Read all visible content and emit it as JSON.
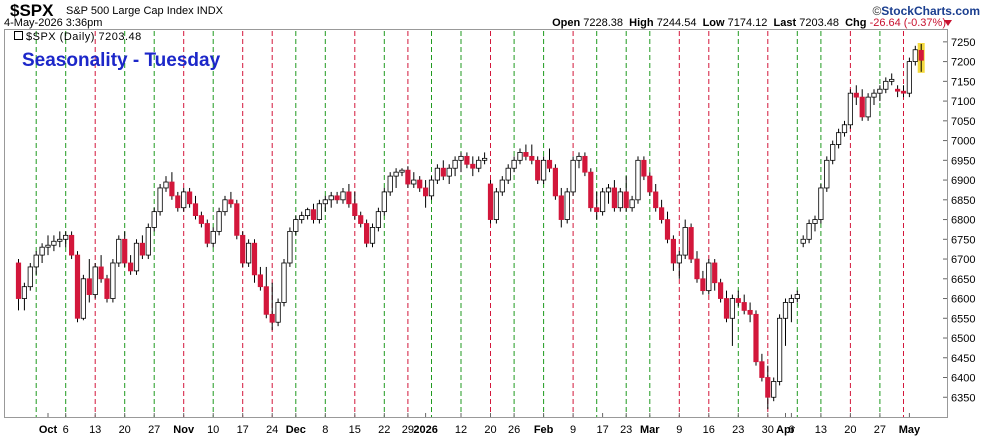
{
  "header": {
    "symbol": "$SPX",
    "name": "S&P 500 Large Cap Index",
    "exchange": "INDX",
    "datetime": "4-May-2026 3:36pm",
    "brand": "StockCharts.com",
    "brand_prefix": "©",
    "open_label": "Open",
    "open": "7228.38",
    "high_label": "High",
    "high": "7244.54",
    "low_label": "Low",
    "low": "7174.12",
    "last_label": "Last",
    "last": "7203.48",
    "chg_label": "Chg",
    "chg": "-26.64 (-0.37%)"
  },
  "legend": {
    "label": "$SPX (Daily) 7203.48"
  },
  "title": "Seasonality - Tuesday",
  "colors": {
    "up": "#ffffff",
    "down": "#d3173b",
    "green_line": "#1f9a1f",
    "red_line": "#d3173b",
    "title": "#1c27c9",
    "highlight": "#f2d21b"
  },
  "chart_data": {
    "type": "candlestick",
    "title": "Seasonality - Tuesday",
    "y_axis": {
      "position": "right",
      "ylim": [
        6300,
        7280
      ],
      "ticks": [
        6350,
        6400,
        6450,
        6500,
        6550,
        6600,
        6650,
        6700,
        6750,
        6800,
        6850,
        6900,
        6950,
        7000,
        7050,
        7100,
        7150,
        7200,
        7250
      ]
    },
    "x_tick_labels": [
      {
        "label": "Oct",
        "i": 5,
        "bold": true
      },
      {
        "label": "6",
        "i": 8
      },
      {
        "label": "13",
        "i": 13
      },
      {
        "label": "20",
        "i": 18
      },
      {
        "label": "27",
        "i": 23
      },
      {
        "label": "Nov",
        "i": 28,
        "bold": true
      },
      {
        "label": "10",
        "i": 33
      },
      {
        "label": "17",
        "i": 38
      },
      {
        "label": "24",
        "i": 43
      },
      {
        "label": "Dec",
        "i": 47,
        "bold": true
      },
      {
        "label": "8",
        "i": 52
      },
      {
        "label": "15",
        "i": 57
      },
      {
        "label": "22",
        "i": 62
      },
      {
        "label": "29",
        "i": 66
      },
      {
        "label": "2026",
        "i": 69,
        "bold": true
      },
      {
        "label": "12",
        "i": 75
      },
      {
        "label": "20",
        "i": 80
      },
      {
        "label": "26",
        "i": 84
      },
      {
        "label": "Feb",
        "i": 89,
        "bold": true
      },
      {
        "label": "9",
        "i": 94
      },
      {
        "label": "17",
        "i": 99
      },
      {
        "label": "23",
        "i": 103
      },
      {
        "label": "Mar",
        "i": 107,
        "bold": true
      },
      {
        "label": "9",
        "i": 112
      },
      {
        "label": "16",
        "i": 117
      },
      {
        "label": "23",
        "i": 122
      },
      {
        "label": "30",
        "i": 127
      },
      {
        "label": "Apr",
        "i": 130,
        "bold": true
      },
      {
        "label": "6",
        "i": 131
      },
      {
        "label": "13",
        "i": 136
      },
      {
        "label": "20",
        "i": 141
      },
      {
        "label": "27",
        "i": 146
      },
      {
        "label": "May",
        "i": 151,
        "bold": true
      }
    ],
    "seasonality_lines": [
      {
        "i": 3,
        "c": "green"
      },
      {
        "i": 8,
        "c": "green"
      },
      {
        "i": 13,
        "c": "red"
      },
      {
        "i": 18,
        "c": "green"
      },
      {
        "i": 23,
        "c": "green"
      },
      {
        "i": 28,
        "c": "red"
      },
      {
        "i": 33,
        "c": "green"
      },
      {
        "i": 38,
        "c": "red"
      },
      {
        "i": 43,
        "c": "red"
      },
      {
        "i": 47,
        "c": "green"
      },
      {
        "i": 52,
        "c": "green"
      },
      {
        "i": 57,
        "c": "red"
      },
      {
        "i": 62,
        "c": "green"
      },
      {
        "i": 66,
        "c": "red"
      },
      {
        "i": 70,
        "c": "green"
      },
      {
        "i": 75,
        "c": "green"
      },
      {
        "i": 80,
        "c": "red"
      },
      {
        "i": 84,
        "c": "green"
      },
      {
        "i": 89,
        "c": "green"
      },
      {
        "i": 94,
        "c": "red"
      },
      {
        "i": 98,
        "c": "green"
      },
      {
        "i": 103,
        "c": "green"
      },
      {
        "i": 107,
        "c": "green"
      },
      {
        "i": 112,
        "c": "red"
      },
      {
        "i": 117,
        "c": "red"
      },
      {
        "i": 122,
        "c": "green"
      },
      {
        "i": 127,
        "c": "red"
      },
      {
        "i": 132,
        "c": "green"
      },
      {
        "i": 136,
        "c": "green"
      },
      {
        "i": 141,
        "c": "red"
      },
      {
        "i": 146,
        "c": "green"
      },
      {
        "i": 150,
        "c": "red"
      }
    ],
    "candles": [
      {
        "o": 6690,
        "h": 6700,
        "l": 6570,
        "c": 6600
      },
      {
        "o": 6600,
        "h": 6640,
        "l": 6570,
        "c": 6630
      },
      {
        "o": 6630,
        "h": 6690,
        "l": 6620,
        "c": 6680
      },
      {
        "o": 6680,
        "h": 6720,
        "l": 6660,
        "c": 6710
      },
      {
        "o": 6710,
        "h": 6740,
        "l": 6690,
        "c": 6730
      },
      {
        "o": 6730,
        "h": 6760,
        "l": 6710,
        "c": 6735
      },
      {
        "o": 6735,
        "h": 6760,
        "l": 6720,
        "c": 6745
      },
      {
        "o": 6745,
        "h": 6770,
        "l": 6730,
        "c": 6750
      },
      {
        "o": 6750,
        "h": 6770,
        "l": 6730,
        "c": 6760
      },
      {
        "o": 6760,
        "h": 6770,
        "l": 6700,
        "c": 6710
      },
      {
        "o": 6710,
        "h": 6720,
        "l": 6540,
        "c": 6550
      },
      {
        "o": 6550,
        "h": 6660,
        "l": 6545,
        "c": 6650
      },
      {
        "o": 6650,
        "h": 6700,
        "l": 6590,
        "c": 6610
      },
      {
        "o": 6610,
        "h": 6690,
        "l": 6600,
        "c": 6680
      },
      {
        "o": 6680,
        "h": 6710,
        "l": 6640,
        "c": 6650
      },
      {
        "o": 6650,
        "h": 6660,
        "l": 6590,
        "c": 6600
      },
      {
        "o": 6600,
        "h": 6700,
        "l": 6590,
        "c": 6690
      },
      {
        "o": 6690,
        "h": 6760,
        "l": 6680,
        "c": 6750
      },
      {
        "o": 6750,
        "h": 6770,
        "l": 6680,
        "c": 6690
      },
      {
        "o": 6690,
        "h": 6710,
        "l": 6660,
        "c": 6670
      },
      {
        "o": 6670,
        "h": 6750,
        "l": 6660,
        "c": 6740
      },
      {
        "o": 6740,
        "h": 6760,
        "l": 6700,
        "c": 6710
      },
      {
        "o": 6710,
        "h": 6790,
        "l": 6700,
        "c": 6780
      },
      {
        "o": 6780,
        "h": 6830,
        "l": 6770,
        "c": 6820
      },
      {
        "o": 6820,
        "h": 6890,
        "l": 6810,
        "c": 6880
      },
      {
        "o": 6880,
        "h": 6910,
        "l": 6870,
        "c": 6895
      },
      {
        "o": 6895,
        "h": 6920,
        "l": 6850,
        "c": 6860
      },
      {
        "o": 6860,
        "h": 6870,
        "l": 6820,
        "c": 6830
      },
      {
        "o": 6830,
        "h": 6880,
        "l": 6820,
        "c": 6870
      },
      {
        "o": 6870,
        "h": 6880,
        "l": 6830,
        "c": 6840
      },
      {
        "o": 6840,
        "h": 6860,
        "l": 6800,
        "c": 6810
      },
      {
        "o": 6810,
        "h": 6820,
        "l": 6780,
        "c": 6790
      },
      {
        "o": 6790,
        "h": 6800,
        "l": 6730,
        "c": 6740
      },
      {
        "o": 6740,
        "h": 6780,
        "l": 6730,
        "c": 6770
      },
      {
        "o": 6770,
        "h": 6830,
        "l": 6760,
        "c": 6820
      },
      {
        "o": 6820,
        "h": 6860,
        "l": 6810,
        "c": 6850
      },
      {
        "o": 6850,
        "h": 6870,
        "l": 6830,
        "c": 6840
      },
      {
        "o": 6840,
        "h": 6850,
        "l": 6750,
        "c": 6760
      },
      {
        "o": 6760,
        "h": 6770,
        "l": 6680,
        "c": 6690
      },
      {
        "o": 6690,
        "h": 6750,
        "l": 6680,
        "c": 6740
      },
      {
        "o": 6740,
        "h": 6750,
        "l": 6640,
        "c": 6660
      },
      {
        "o": 6660,
        "h": 6680,
        "l": 6620,
        "c": 6630
      },
      {
        "o": 6630,
        "h": 6680,
        "l": 6550,
        "c": 6560
      },
      {
        "o": 6560,
        "h": 6640,
        "l": 6520,
        "c": 6540
      },
      {
        "o": 6540,
        "h": 6600,
        "l": 6530,
        "c": 6590
      },
      {
        "o": 6590,
        "h": 6700,
        "l": 6580,
        "c": 6690
      },
      {
        "o": 6690,
        "h": 6780,
        "l": 6680,
        "c": 6770
      },
      {
        "o": 6770,
        "h": 6810,
        "l": 6760,
        "c": 6800
      },
      {
        "o": 6800,
        "h": 6820,
        "l": 6790,
        "c": 6810
      },
      {
        "o": 6810,
        "h": 6830,
        "l": 6800,
        "c": 6825
      },
      {
        "o": 6825,
        "h": 6840,
        "l": 6790,
        "c": 6800
      },
      {
        "o": 6800,
        "h": 6850,
        "l": 6790,
        "c": 6840
      },
      {
        "o": 6840,
        "h": 6860,
        "l": 6820,
        "c": 6850
      },
      {
        "o": 6850,
        "h": 6870,
        "l": 6830,
        "c": 6860
      },
      {
        "o": 6860,
        "h": 6870,
        "l": 6840,
        "c": 6850
      },
      {
        "o": 6850,
        "h": 6880,
        "l": 6840,
        "c": 6870
      },
      {
        "o": 6870,
        "h": 6890,
        "l": 6830,
        "c": 6840
      },
      {
        "o": 6840,
        "h": 6870,
        "l": 6800,
        "c": 6810
      },
      {
        "o": 6810,
        "h": 6820,
        "l": 6780,
        "c": 6790
      },
      {
        "o": 6790,
        "h": 6800,
        "l": 6730,
        "c": 6740
      },
      {
        "o": 6740,
        "h": 6790,
        "l": 6730,
        "c": 6780
      },
      {
        "o": 6780,
        "h": 6830,
        "l": 6770,
        "c": 6820
      },
      {
        "o": 6820,
        "h": 6880,
        "l": 6810,
        "c": 6870
      },
      {
        "o": 6870,
        "h": 6920,
        "l": 6860,
        "c": 6910
      },
      {
        "o": 6910,
        "h": 6930,
        "l": 6880,
        "c": 6920
      },
      {
        "o": 6920,
        "h": 6930,
        "l": 6910,
        "c": 6925
      },
      {
        "o": 6925,
        "h": 6935,
        "l": 6880,
        "c": 6890
      },
      {
        "o": 6890,
        "h": 6920,
        "l": 6880,
        "c": 6900
      },
      {
        "o": 6900,
        "h": 6910,
        "l": 6870,
        "c": 6880
      },
      {
        "o": 6880,
        "h": 6900,
        "l": 6830,
        "c": 6860
      },
      {
        "o": 6860,
        "h": 6910,
        "l": 6850,
        "c": 6900
      },
      {
        "o": 6900,
        "h": 6940,
        "l": 6890,
        "c": 6930
      },
      {
        "o": 6930,
        "h": 6950,
        "l": 6900,
        "c": 6910
      },
      {
        "o": 6910,
        "h": 6940,
        "l": 6890,
        "c": 6930
      },
      {
        "o": 6930,
        "h": 6960,
        "l": 6910,
        "c": 6950
      },
      {
        "o": 6950,
        "h": 6970,
        "l": 6920,
        "c": 6960
      },
      {
        "o": 6960,
        "h": 6970,
        "l": 6930,
        "c": 6940
      },
      {
        "o": 6940,
        "h": 6960,
        "l": 6910,
        "c": 6930
      },
      {
        "o": 6930,
        "h": 6960,
        "l": 6920,
        "c": 6950
      },
      {
        "o": 6950,
        "h": 6970,
        "l": 6940,
        "c": 6955
      },
      {
        "o": 6890,
        "h": 6900,
        "l": 6790,
        "c": 6800
      },
      {
        "o": 6800,
        "h": 6880,
        "l": 6790,
        "c": 6870
      },
      {
        "o": 6870,
        "h": 6910,
        "l": 6860,
        "c": 6900
      },
      {
        "o": 6900,
        "h": 6940,
        "l": 6890,
        "c": 6930
      },
      {
        "o": 6930,
        "h": 6960,
        "l": 6920,
        "c": 6950
      },
      {
        "o": 6950,
        "h": 6980,
        "l": 6940,
        "c": 6970
      },
      {
        "o": 6970,
        "h": 6990,
        "l": 6950,
        "c": 6960
      },
      {
        "o": 6960,
        "h": 6990,
        "l": 6940,
        "c": 6950
      },
      {
        "o": 6950,
        "h": 6960,
        "l": 6890,
        "c": 6900
      },
      {
        "o": 6900,
        "h": 6960,
        "l": 6890,
        "c": 6950
      },
      {
        "o": 6950,
        "h": 6980,
        "l": 6920,
        "c": 6930
      },
      {
        "o": 6930,
        "h": 6940,
        "l": 6850,
        "c": 6860
      },
      {
        "o": 6860,
        "h": 6880,
        "l": 6780,
        "c": 6800
      },
      {
        "o": 6800,
        "h": 6880,
        "l": 6790,
        "c": 6870
      },
      {
        "o": 6870,
        "h": 6960,
        "l": 6860,
        "c": 6950
      },
      {
        "o": 6950,
        "h": 6970,
        "l": 6930,
        "c": 6960
      },
      {
        "o": 6960,
        "h": 6970,
        "l": 6910,
        "c": 6920
      },
      {
        "o": 6920,
        "h": 6930,
        "l": 6820,
        "c": 6830
      },
      {
        "o": 6830,
        "h": 6870,
        "l": 6800,
        "c": 6820
      },
      {
        "o": 6820,
        "h": 6880,
        "l": 6810,
        "c": 6870
      },
      {
        "o": 6870,
        "h": 6890,
        "l": 6840,
        "c": 6880
      },
      {
        "o": 6880,
        "h": 6900,
        "l": 6820,
        "c": 6830
      },
      {
        "o": 6830,
        "h": 6880,
        "l": 6820,
        "c": 6870
      },
      {
        "o": 6870,
        "h": 6910,
        "l": 6820,
        "c": 6830
      },
      {
        "o": 6830,
        "h": 6860,
        "l": 6820,
        "c": 6850
      },
      {
        "o": 6850,
        "h": 6960,
        "l": 6840,
        "c": 6950
      },
      {
        "o": 6950,
        "h": 6960,
        "l": 6900,
        "c": 6910
      },
      {
        "o": 6910,
        "h": 6920,
        "l": 6860,
        "c": 6870
      },
      {
        "o": 6870,
        "h": 6890,
        "l": 6820,
        "c": 6830
      },
      {
        "o": 6830,
        "h": 6850,
        "l": 6790,
        "c": 6800
      },
      {
        "o": 6800,
        "h": 6820,
        "l": 6740,
        "c": 6750
      },
      {
        "o": 6750,
        "h": 6760,
        "l": 6670,
        "c": 6690
      },
      {
        "o": 6690,
        "h": 6720,
        "l": 6650,
        "c": 6710
      },
      {
        "o": 6710,
        "h": 6800,
        "l": 6700,
        "c": 6780
      },
      {
        "o": 6780,
        "h": 6790,
        "l": 6690,
        "c": 6700
      },
      {
        "o": 6700,
        "h": 6720,
        "l": 6640,
        "c": 6650
      },
      {
        "o": 6650,
        "h": 6670,
        "l": 6610,
        "c": 6620
      },
      {
        "o": 6620,
        "h": 6700,
        "l": 6610,
        "c": 6690
      },
      {
        "o": 6690,
        "h": 6700,
        "l": 6620,
        "c": 6640
      },
      {
        "o": 6640,
        "h": 6650,
        "l": 6590,
        "c": 6600
      },
      {
        "o": 6600,
        "h": 6620,
        "l": 6540,
        "c": 6550
      },
      {
        "o": 6550,
        "h": 6610,
        "l": 6480,
        "c": 6600
      },
      {
        "o": 6600,
        "h": 6620,
        "l": 6580,
        "c": 6590
      },
      {
        "o": 6590,
        "h": 6610,
        "l": 6560,
        "c": 6570
      },
      {
        "o": 6570,
        "h": 6590,
        "l": 6540,
        "c": 6560
      },
      {
        "o": 6560,
        "h": 6570,
        "l": 6430,
        "c": 6440
      },
      {
        "o": 6440,
        "h": 6460,
        "l": 6390,
        "c": 6400
      },
      {
        "o": 6400,
        "h": 6430,
        "l": 6320,
        "c": 6350
      },
      {
        "o": 6350,
        "h": 6400,
        "l": 6340,
        "c": 6390
      },
      {
        "o": 6390,
        "h": 6560,
        "l": 6380,
        "c": 6550
      },
      {
        "o": 6550,
        "h": 6600,
        "l": 6480,
        "c": 6590
      },
      {
        "o": 6590,
        "h": 6610,
        "l": 6540,
        "c": 6600
      },
      {
        "o": 6600,
        "h": 6620,
        "l": 6590,
        "c": 6610
      },
      {
        "o": 6740,
        "h": 6760,
        "l": 6730,
        "c": 6750
      },
      {
        "o": 6750,
        "h": 6800,
        "l": 6740,
        "c": 6790
      },
      {
        "o": 6790,
        "h": 6810,
        "l": 6770,
        "c": 6800
      },
      {
        "o": 6800,
        "h": 6890,
        "l": 6790,
        "c": 6880
      },
      {
        "o": 6880,
        "h": 6960,
        "l": 6870,
        "c": 6950
      },
      {
        "o": 6950,
        "h": 7000,
        "l": 6940,
        "c": 6990
      },
      {
        "o": 6990,
        "h": 7030,
        "l": 6980,
        "c": 7020
      },
      {
        "o": 7020,
        "h": 7050,
        "l": 7010,
        "c": 7040
      },
      {
        "o": 7040,
        "h": 7130,
        "l": 7030,
        "c": 7120
      },
      {
        "o": 7120,
        "h": 7140,
        "l": 7090,
        "c": 7110
      },
      {
        "o": 7110,
        "h": 7130,
        "l": 7050,
        "c": 7060
      },
      {
        "o": 7060,
        "h": 7120,
        "l": 7050,
        "c": 7110
      },
      {
        "o": 7110,
        "h": 7130,
        "l": 7090,
        "c": 7120
      },
      {
        "o": 7120,
        "h": 7140,
        "l": 7100,
        "c": 7130
      },
      {
        "o": 7130,
        "h": 7160,
        "l": 7120,
        "c": 7150
      },
      {
        "o": 7150,
        "h": 7170,
        "l": 7140,
        "c": 7155
      },
      {
        "o": 7130,
        "h": 7140,
        "l": 7110,
        "c": 7125
      },
      {
        "o": 7125,
        "h": 7140,
        "l": 7110,
        "c": 7120
      },
      {
        "o": 7120,
        "h": 7210,
        "l": 7110,
        "c": 7200
      },
      {
        "o": 7200,
        "h": 7240,
        "l": 7190,
        "c": 7230
      },
      {
        "o": 7228.38,
        "h": 7244.54,
        "l": 7174.12,
        "c": 7203.48
      }
    ]
  }
}
